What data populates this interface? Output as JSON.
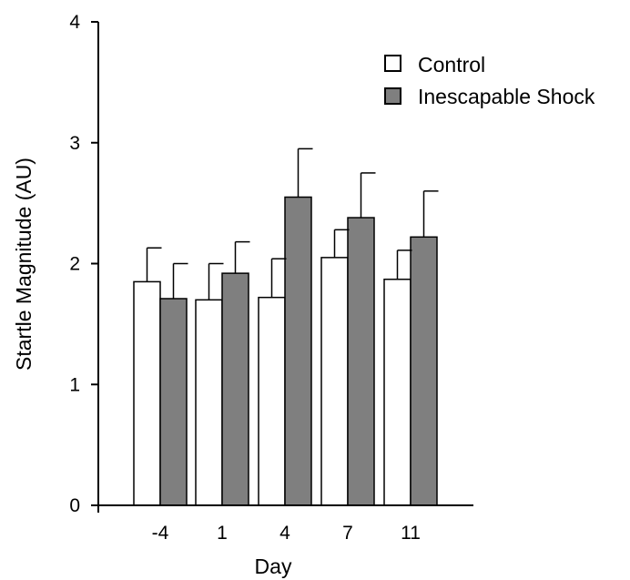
{
  "chart_data": {
    "type": "bar",
    "xlabel": "Day",
    "ylabel": "Startle Magnitude (AU)",
    "categories": [
      "-4",
      "1",
      "4",
      "7",
      "11"
    ],
    "ylim": [
      0,
      4
    ],
    "yticks": [
      "0",
      "1",
      "2",
      "3",
      "4"
    ],
    "series": [
      {
        "name": "Control",
        "color": "#ffffff",
        "values": [
          1.85,
          1.7,
          1.72,
          2.05,
          1.87
        ],
        "errors": [
          0.28,
          0.3,
          0.32,
          0.23,
          0.24
        ]
      },
      {
        "name": "Inescapable Shock",
        "color": "#7f7f7f",
        "values": [
          1.71,
          1.92,
          2.55,
          2.38,
          2.22
        ],
        "errors": [
          0.29,
          0.26,
          0.4,
          0.37,
          0.38
        ]
      }
    ],
    "legend_position": "top-right",
    "grid": false
  }
}
